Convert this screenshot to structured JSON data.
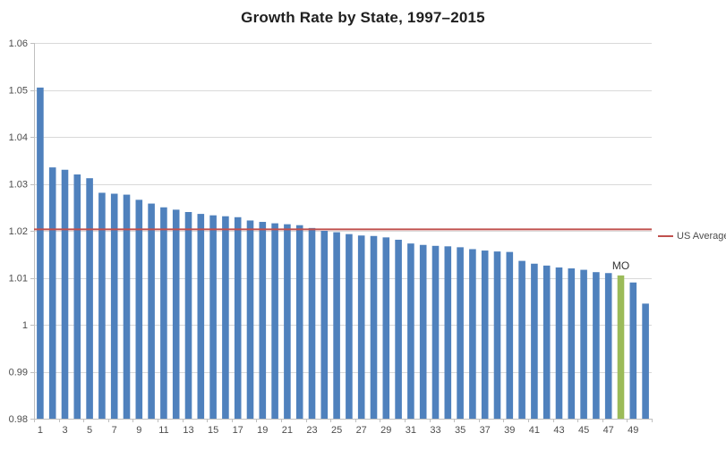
{
  "chart_data": {
    "type": "bar",
    "title": "Growth Rate by State, 1997–2015",
    "xlabel": "",
    "ylabel": "",
    "ylim": [
      0.98,
      1.06
    ],
    "grid": true,
    "legend_position": "right",
    "yticks": [
      0.98,
      0.99,
      1.0,
      1.01,
      1.02,
      1.03,
      1.04,
      1.05,
      1.06
    ],
    "ytick_labels": [
      "0.98",
      "0.99",
      "1",
      "1.01",
      "1.02",
      "1.03",
      "1.04",
      "1.05",
      "1.06"
    ],
    "xtick_labels": [
      "1",
      "3",
      "5",
      "7",
      "9",
      "11",
      "13",
      "15",
      "17",
      "19",
      "21",
      "23",
      "25",
      "27",
      "29",
      "31",
      "33",
      "35",
      "37",
      "39",
      "41",
      "43",
      "45",
      "47",
      "49"
    ],
    "categories": [
      1,
      2,
      3,
      4,
      5,
      6,
      7,
      8,
      9,
      10,
      11,
      12,
      13,
      14,
      15,
      16,
      17,
      18,
      19,
      20,
      21,
      22,
      23,
      24,
      25,
      26,
      27,
      28,
      29,
      30,
      31,
      32,
      33,
      34,
      35,
      36,
      37,
      38,
      39,
      40,
      41,
      42,
      43,
      44,
      45,
      46,
      47,
      48,
      49,
      50
    ],
    "values": [
      1.0505,
      1.0335,
      1.033,
      1.032,
      1.0312,
      1.0281,
      1.0279,
      1.0277,
      1.0266,
      1.0258,
      1.025,
      1.0245,
      1.024,
      1.0236,
      1.0233,
      1.0231,
      1.0229,
      1.0222,
      1.0219,
      1.0216,
      1.0214,
      1.0212,
      1.0206,
      1.02,
      1.0197,
      1.0193,
      1.019,
      1.0189,
      1.0186,
      1.0181,
      1.0173,
      1.017,
      1.0168,
      1.0167,
      1.0165,
      1.0161,
      1.0158,
      1.0156,
      1.0155,
      1.0136,
      1.013,
      1.0126,
      1.0122,
      1.012,
      1.0117,
      1.0112,
      1.011,
      1.0105,
      1.009,
      1.0045
    ],
    "bar_color": "#4f81bd",
    "highlight": {
      "index_1based": 48,
      "label": "MO",
      "color": "#9bbb59"
    },
    "ref_line": {
      "value": 1.0203,
      "label": "US Average",
      "color": "#c0504d"
    },
    "colors": {
      "gridline": "#d9d9d9",
      "axis": "#bfbfbf",
      "tick_text": "#4d4d4d"
    }
  }
}
